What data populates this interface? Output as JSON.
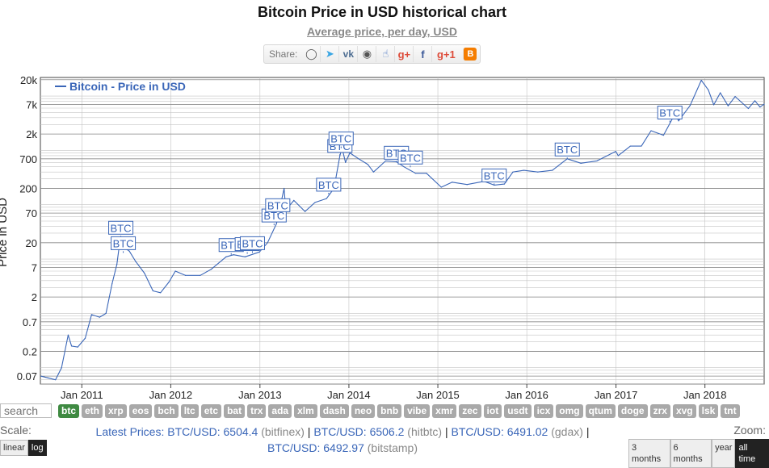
{
  "header": {
    "title": "Bitcoin Price in USD historical chart",
    "subtitle": "Average price, per day, USD",
    "share_label": "Share:"
  },
  "share_icons": [
    "reddit-icon",
    "twitter-icon",
    "vk-icon",
    "weibo-icon",
    "like-icon",
    "google-plus-icon",
    "facebook-icon",
    "google-plus-one-icon",
    "blogger-icon"
  ],
  "chart_data": {
    "type": "line",
    "title": "",
    "xlabel": "",
    "ylabel": "Price in USD",
    "yscale": "log",
    "ylim": [
      0.05,
      22000
    ],
    "yticks": [
      {
        "label": "20k",
        "value": 20000
      },
      {
        "label": "7k",
        "value": 7000
      },
      {
        "label": "2k",
        "value": 2000
      },
      {
        "label": "700",
        "value": 700
      },
      {
        "label": "200",
        "value": 200
      },
      {
        "label": "70",
        "value": 70
      },
      {
        "label": "20",
        "value": 20
      },
      {
        "label": "7",
        "value": 7
      },
      {
        "label": "2",
        "value": 2
      },
      {
        "label": "0.7",
        "value": 0.7
      },
      {
        "label": "0.2",
        "value": 0.2
      },
      {
        "label": "0.07",
        "value": 0.07
      }
    ],
    "xticks": [
      "Jan 2011",
      "Jan 2012",
      "Jan 2013",
      "Jan 2014",
      "Jan 2015",
      "Jan 2016",
      "Jan 2017",
      "Jan 2018"
    ],
    "xlim": [
      "2010-07-15",
      "2018-09-01"
    ],
    "grid": true,
    "legend": "top-left",
    "series": [
      {
        "name": "Bitcoin - Price in USD",
        "color": "#3a66b8",
        "points": [
          [
            "2010-07-18",
            0.07
          ],
          [
            "2010-08-15",
            0.065
          ],
          [
            "2010-09-15",
            0.06
          ],
          [
            "2010-10-10",
            0.1
          ],
          [
            "2010-11-06",
            0.4
          ],
          [
            "2010-11-20",
            0.25
          ],
          [
            "2010-12-15",
            0.24
          ],
          [
            "2011-01-15",
            0.35
          ],
          [
            "2011-02-10",
            0.95
          ],
          [
            "2011-03-15",
            0.85
          ],
          [
            "2011-04-10",
            1.0
          ],
          [
            "2011-05-05",
            3.5
          ],
          [
            "2011-05-25",
            8
          ],
          [
            "2011-06-08",
            25
          ],
          [
            "2011-06-25",
            16
          ],
          [
            "2011-07-15",
            14
          ],
          [
            "2011-08-10",
            9
          ],
          [
            "2011-09-15",
            5.5
          ],
          [
            "2011-10-20",
            2.6
          ],
          [
            "2011-11-20",
            2.4
          ],
          [
            "2011-12-25",
            3.8
          ],
          [
            "2012-01-20",
            6
          ],
          [
            "2012-03-01",
            5
          ],
          [
            "2012-05-01",
            5
          ],
          [
            "2012-06-15",
            6.5
          ],
          [
            "2012-08-15",
            11
          ],
          [
            "2012-09-15",
            12
          ],
          [
            "2012-11-01",
            11
          ],
          [
            "2012-12-30",
            13.5
          ],
          [
            "2013-02-01",
            20
          ],
          [
            "2013-03-10",
            45
          ],
          [
            "2013-04-10",
            200
          ],
          [
            "2013-04-17",
            80
          ],
          [
            "2013-05-20",
            120
          ],
          [
            "2013-07-05",
            75
          ],
          [
            "2013-08-15",
            110
          ],
          [
            "2013-10-01",
            130
          ],
          [
            "2013-11-01",
            200
          ],
          [
            "2013-11-25",
            800
          ],
          [
            "2013-12-04",
            1100
          ],
          [
            "2013-12-18",
            600
          ],
          [
            "2014-01-05",
            900
          ],
          [
            "2014-02-10",
            700
          ],
          [
            "2014-03-20",
            550
          ],
          [
            "2014-04-12",
            400
          ],
          [
            "2014-06-01",
            640
          ],
          [
            "2014-07-15",
            620
          ],
          [
            "2014-08-15",
            500
          ],
          [
            "2014-10-01",
            380
          ],
          [
            "2014-11-15",
            380
          ],
          [
            "2015-01-15",
            210
          ],
          [
            "2015-03-01",
            260
          ],
          [
            "2015-05-01",
            235
          ],
          [
            "2015-07-10",
            270
          ],
          [
            "2015-08-20",
            230
          ],
          [
            "2015-10-01",
            240
          ],
          [
            "2015-11-05",
            400
          ],
          [
            "2015-12-20",
            430
          ],
          [
            "2016-02-15",
            400
          ],
          [
            "2016-04-15",
            430
          ],
          [
            "2016-06-15",
            700
          ],
          [
            "2016-08-10",
            580
          ],
          [
            "2016-10-15",
            640
          ],
          [
            "2016-12-31",
            960
          ],
          [
            "2017-01-10",
            800
          ],
          [
            "2017-03-01",
            1200
          ],
          [
            "2017-04-15",
            1200
          ],
          [
            "2017-05-25",
            2300
          ],
          [
            "2017-07-15",
            1900
          ],
          [
            "2017-08-31",
            4700
          ],
          [
            "2017-09-15",
            3500
          ],
          [
            "2017-11-01",
            6700
          ],
          [
            "2017-12-17",
            19500
          ],
          [
            "2018-01-15",
            13000
          ],
          [
            "2018-02-06",
            6900
          ],
          [
            "2018-03-05",
            11500
          ],
          [
            "2018-04-06",
            6600
          ],
          [
            "2018-05-05",
            9800
          ],
          [
            "2018-06-28",
            5900
          ],
          [
            "2018-07-25",
            8200
          ],
          [
            "2018-08-15",
            6300
          ],
          [
            "2018-09-01",
            7100
          ]
        ]
      }
    ],
    "annotations": [
      {
        "label": "BTC",
        "x": "2011-06-10",
        "y": 25
      },
      {
        "label": "BTC",
        "x": "2011-06-20",
        "y": 13
      },
      {
        "label": "BTC",
        "x": "2012-09-05",
        "y": 12
      },
      {
        "label": "BTC",
        "x": "2012-11-10",
        "y": 12.5
      },
      {
        "label": "BTC",
        "x": "2012-12-01",
        "y": 13
      },
      {
        "label": "BTC",
        "x": "2013-02-28",
        "y": 42
      },
      {
        "label": "BTC",
        "x": "2013-03-15",
        "y": 65
      },
      {
        "label": "BTC",
        "x": "2013-10-10",
        "y": 155
      },
      {
        "label": "BTC",
        "x": "2013-11-25",
        "y": 800
      },
      {
        "label": "BTC",
        "x": "2013-11-30",
        "y": 1100
      },
      {
        "label": "BTC",
        "x": "2014-07-15",
        "y": 600
      },
      {
        "label": "BTC",
        "x": "2014-09-10",
        "y": 490
      },
      {
        "label": "BTC",
        "x": "2015-08-20",
        "y": 230
      },
      {
        "label": "BTC",
        "x": "2016-06-15",
        "y": 690
      },
      {
        "label": "BTC",
        "x": "2017-08-10",
        "y": 3300
      }
    ]
  },
  "coins": [
    "btc",
    "eth",
    "xrp",
    "eos",
    "bch",
    "ltc",
    "etc",
    "bat",
    "trx",
    "ada",
    "xlm",
    "dash",
    "neo",
    "bnb",
    "vibe",
    "xmr",
    "zec",
    "iot",
    "usdt",
    "icx",
    "omg",
    "qtum",
    "doge",
    "zrx",
    "xvg",
    "lsk",
    "tnt"
  ],
  "active_coin": "btc",
  "search": {
    "placeholder": "search"
  },
  "scale": {
    "label": "Scale:",
    "options": [
      "linear",
      "log"
    ],
    "active": "log"
  },
  "zoom": {
    "label": "Zoom:",
    "options": [
      "3 months",
      "6 months",
      "year",
      "all time"
    ],
    "active": "all time"
  },
  "latest": {
    "label": "Latest Prices:",
    "prices": [
      {
        "pair": "BTC/USD:",
        "price": "6504.4",
        "exchange": "(bitfinex)"
      },
      {
        "pair": "BTC/USD:",
        "price": "6506.2",
        "exchange": "(hitbtc)"
      },
      {
        "pair": "BTC/USD:",
        "price": "6491.02",
        "exchange": "(gdax)"
      },
      {
        "pair": "BTC/USD:",
        "price": "6492.97",
        "exchange": "(bitstamp)"
      }
    ]
  }
}
